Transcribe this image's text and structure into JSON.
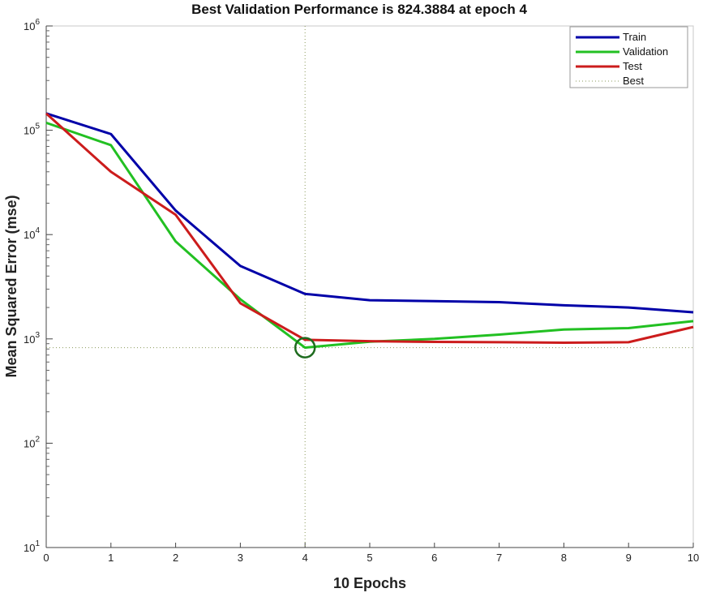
{
  "chart_data": {
    "type": "line",
    "title": "Best Validation Performance is 824.3884 at epoch 4",
    "xlabel": "10 Epochs",
    "ylabel": "Mean Squared Error  (mse)",
    "xlim": [
      0,
      10
    ],
    "ylim": [
      10,
      1000000
    ],
    "yscale": "log",
    "x_ticks": [
      "0",
      "1",
      "2",
      "3",
      "4",
      "5",
      "6",
      "7",
      "8",
      "9",
      "10"
    ],
    "y_ticks": [
      {
        "base": "10",
        "exp": "1"
      },
      {
        "base": "10",
        "exp": "2"
      },
      {
        "base": "10",
        "exp": "3"
      },
      {
        "base": "10",
        "exp": "4"
      },
      {
        "base": "10",
        "exp": "5"
      },
      {
        "base": "10",
        "exp": "6"
      }
    ],
    "x": [
      0,
      1,
      2,
      3,
      4,
      5,
      6,
      7,
      8,
      9,
      10
    ],
    "series": [
      {
        "name": "Train",
        "color": "#0000a8",
        "values": [
          145000,
          92000,
          17000,
          5000,
          2700,
          2350,
          2300,
          2250,
          2100,
          2000,
          1800
        ]
      },
      {
        "name": "Validation",
        "color": "#22c022",
        "values": [
          118000,
          72000,
          8600,
          2400,
          824.3884,
          940,
          1000,
          1100,
          1230,
          1270,
          1480
        ]
      },
      {
        "name": "Test",
        "color": "#cc1c1c",
        "values": [
          145000,
          40000,
          15500,
          2200,
          980,
          950,
          935,
          930,
          920,
          930,
          1300
        ]
      }
    ],
    "best": {
      "label": "Best",
      "epoch": 4,
      "value": 824.3884,
      "color": "#3a8a3a"
    },
    "legend_position": "top-right",
    "grid": false
  }
}
